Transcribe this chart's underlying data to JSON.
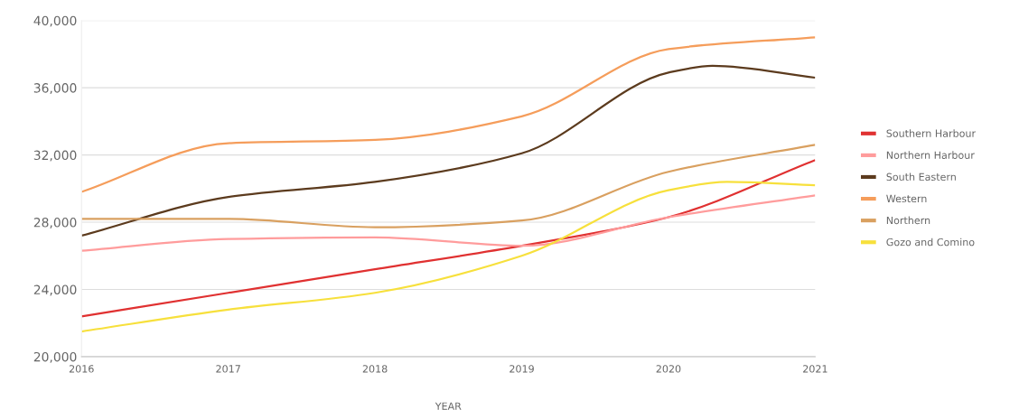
{
  "chart_data": {
    "type": "line",
    "xlabel": "YEAR",
    "x": [
      2016,
      2017,
      2018,
      2019,
      2020,
      2021
    ],
    "xlim": [
      2016,
      2021
    ],
    "xticks": [
      2016,
      2017,
      2018,
      2019,
      2020,
      2021
    ],
    "ylim": [
      20000,
      40000
    ],
    "yticks": [
      {
        "value": 20000,
        "label": "20,000"
      },
      {
        "value": 24000,
        "label": "24,000"
      },
      {
        "value": 28000,
        "label": "28,000"
      },
      {
        "value": 32000,
        "label": "32,000"
      },
      {
        "value": 36000,
        "label": "36,000"
      },
      {
        "value": 40000,
        "label": "40,000"
      }
    ],
    "grid": "y",
    "legend": "right",
    "marker": "none",
    "line_style": "solid",
    "series": [
      {
        "name": "Southern Harbour",
        "color": "#e03131",
        "values": [
          22400,
          23800,
          25200,
          26600,
          28300,
          31700
        ]
      },
      {
        "name": "Northern Harbour",
        "color": "#ff9c9c",
        "values": [
          26300,
          27000,
          27100,
          26600,
          28300,
          29600
        ]
      },
      {
        "name": "South Eastern",
        "color": "#5c3b1e",
        "x": [
          2016,
          2017,
          2018,
          2019,
          2020,
          2020.3,
          2021
        ],
        "values": [
          27200,
          29500,
          30400,
          32100,
          36900,
          37300,
          36600
        ]
      },
      {
        "name": "Western",
        "color": "#f59d5b",
        "values": [
          29800,
          32700,
          32900,
          34300,
          38300,
          39000
        ]
      },
      {
        "name": "Northern",
        "color": "#d9a060",
        "values": [
          28200,
          28200,
          27700,
          28100,
          31000,
          32600
        ]
      },
      {
        "name": "Gozo and Comino",
        "color": "#f7e03c",
        "x": [
          2016,
          2017,
          2018,
          2019,
          2020,
          2020.4,
          2021
        ],
        "values": [
          21500,
          22800,
          23800,
          26000,
          29900,
          30400,
          30200
        ]
      }
    ]
  }
}
